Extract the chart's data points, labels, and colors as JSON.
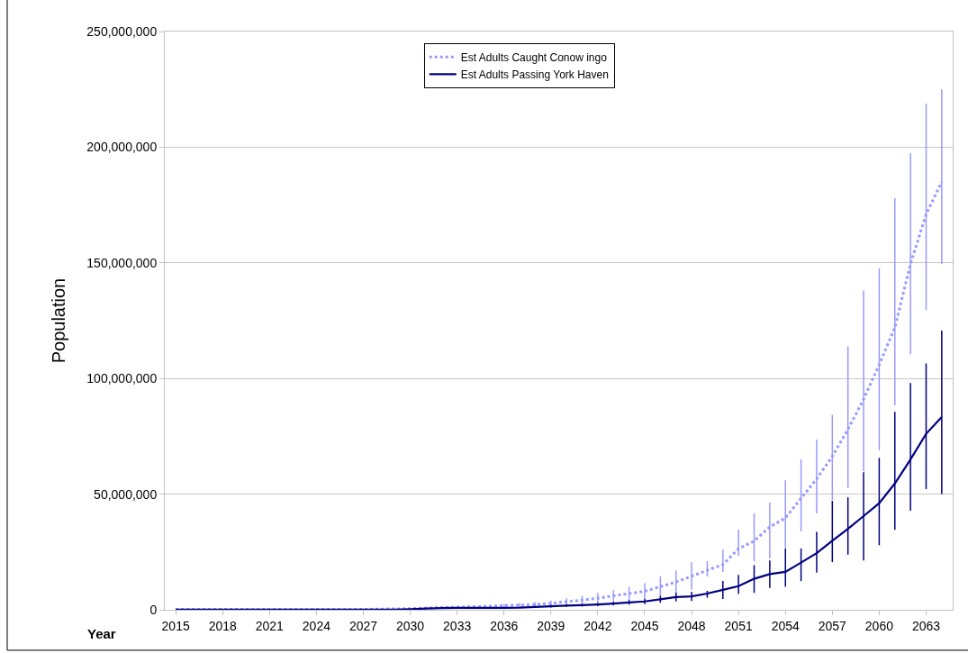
{
  "chart_data": {
    "type": "line",
    "ylabel": "Population",
    "xlabel": "Year",
    "x": [
      2015,
      2016,
      2017,
      2018,
      2019,
      2020,
      2021,
      2022,
      2023,
      2024,
      2025,
      2026,
      2027,
      2028,
      2029,
      2030,
      2031,
      2032,
      2033,
      2034,
      2035,
      2036,
      2037,
      2038,
      2039,
      2040,
      2041,
      2042,
      2043,
      2044,
      2045,
      2046,
      2047,
      2048,
      2049,
      2050,
      2051,
      2052,
      2053,
      2054,
      2055,
      2056,
      2057,
      2058,
      2059,
      2060,
      2061,
      2062,
      2063,
      2064
    ],
    "xlim": [
      2014.3,
      2064.7
    ],
    "xticks": [
      2015,
      2018,
      2021,
      2024,
      2027,
      2030,
      2033,
      2036,
      2039,
      2042,
      2045,
      2048,
      2051,
      2054,
      2057,
      2060,
      2063
    ],
    "ylim": [
      0,
      250000000
    ],
    "yticks": [
      {
        "value": 0,
        "label": "0"
      },
      {
        "value": 50000000,
        "label": "50,000,000"
      },
      {
        "value": 100000000,
        "label": "100,000,000"
      },
      {
        "value": 150000000,
        "label": "150,000,000"
      },
      {
        "value": 200000000,
        "label": "200,000,000"
      },
      {
        "value": 250000000,
        "label": "250,000,000"
      }
    ],
    "grid": "y",
    "legend": "top",
    "marker": "none",
    "series": [
      {
        "name": "Est Adults Caught Conow ingo",
        "color": "#9999ff",
        "line_style": "dotted",
        "values": [
          200000,
          200000,
          200000,
          200000,
          200000,
          200000,
          200000,
          200000,
          200000,
          200000,
          200000,
          200000,
          200000,
          300000,
          400000,
          500000,
          700000,
          1000000,
          1100000,
          1300000,
          1500000,
          1800000,
          2000000,
          2300000,
          2800000,
          3500000,
          4200000,
          5000000,
          6000000,
          7000000,
          8000000,
          10000000,
          12000000,
          14500000,
          17100000,
          19500000,
          26400000,
          29700000,
          35800000,
          39700000,
          48200000,
          56600000,
          66300000,
          78000000,
          91000000,
          106000000,
          122000000,
          149500000,
          171000000,
          185000000
        ],
        "errors": [
          null,
          null,
          null,
          null,
          null,
          null,
          null,
          null,
          null,
          null,
          null,
          null,
          null,
          null,
          null,
          null,
          null,
          null,
          null,
          null,
          null,
          [
            1000000,
            2600000
          ],
          [
            1200000,
            2900000
          ],
          [
            1400000,
            3300000
          ],
          [
            1700000,
            4000000
          ],
          [
            2100000,
            5000000
          ],
          [
            2500000,
            6000000
          ],
          [
            3000000,
            7200000
          ],
          [
            3600000,
            8600000
          ],
          [
            4200000,
            10000000
          ],
          [
            4800000,
            11500000
          ],
          [
            6000000,
            14500000
          ],
          [
            7200000,
            17000000
          ],
          [
            8700000,
            20500000
          ],
          [
            14400000,
            21000000
          ],
          [
            16400000,
            26000000
          ],
          [
            23400000,
            34700000
          ],
          [
            21000000,
            41700000
          ],
          [
            22200000,
            46300000
          ],
          [
            26800000,
            56000000
          ],
          [
            33900000,
            65000000
          ],
          [
            41700000,
            73600000
          ],
          [
            47500000,
            84200000
          ],
          [
            52700000,
            114000000
          ],
          [
            60000000,
            138000000
          ],
          [
            68900000,
            147600000
          ],
          [
            88400000,
            178000000
          ],
          [
            110500000,
            197400000
          ],
          [
            129700000,
            218800000
          ],
          [
            149500000,
            225000000
          ]
        ]
      },
      {
        "name": "Est Adults Passing York Haven",
        "color": "#000080",
        "line_style": "solid",
        "values": [
          100000,
          100000,
          100000,
          100000,
          100000,
          100000,
          100000,
          100000,
          100000,
          100000,
          100000,
          100000,
          100000,
          100000,
          100000,
          300000,
          500000,
          700000,
          800000,
          800000,
          800000,
          800000,
          900000,
          1200000,
          1500000,
          1800000,
          2000000,
          2300000,
          2700000,
          3200000,
          3600000,
          4500000,
          5500000,
          5800000,
          7000000,
          8600000,
          10200000,
          13400000,
          15400000,
          16400000,
          20400000,
          24500000,
          29800000,
          35000000,
          40500000,
          46100000,
          54600000,
          65000000,
          76100000,
          83300000
        ],
        "errors": [
          null,
          null,
          null,
          null,
          null,
          null,
          null,
          null,
          null,
          null,
          null,
          null,
          null,
          null,
          null,
          null,
          null,
          null,
          null,
          null,
          null,
          null,
          null,
          null,
          [
            1000000,
            2000000
          ],
          [
            1300000,
            2300000
          ],
          [
            1400000,
            2600000
          ],
          [
            1600000,
            3000000
          ],
          [
            1900000,
            3500000
          ],
          [
            2200000,
            4200000
          ],
          [
            2400000,
            4800000
          ],
          [
            3000000,
            6000000
          ],
          [
            3600000,
            7400000
          ],
          [
            3800000,
            7800000
          ],
          [
            5200000,
            8200000
          ],
          [
            4700000,
            12500000
          ],
          [
            6800000,
            15100000
          ],
          [
            7300000,
            19300000
          ],
          [
            9400000,
            21300000
          ],
          [
            9900000,
            26500000
          ],
          [
            12400000,
            26500000
          ],
          [
            16100000,
            33700000
          ],
          [
            20600000,
            47100000
          ],
          [
            23800000,
            48600000
          ],
          [
            21300000,
            59500000
          ],
          [
            27900000,
            65700000
          ],
          [
            34600000,
            85600000
          ],
          [
            42800000,
            98000000
          ],
          [
            52200000,
            106500000
          ],
          [
            50000000,
            120700000
          ]
        ]
      }
    ]
  }
}
